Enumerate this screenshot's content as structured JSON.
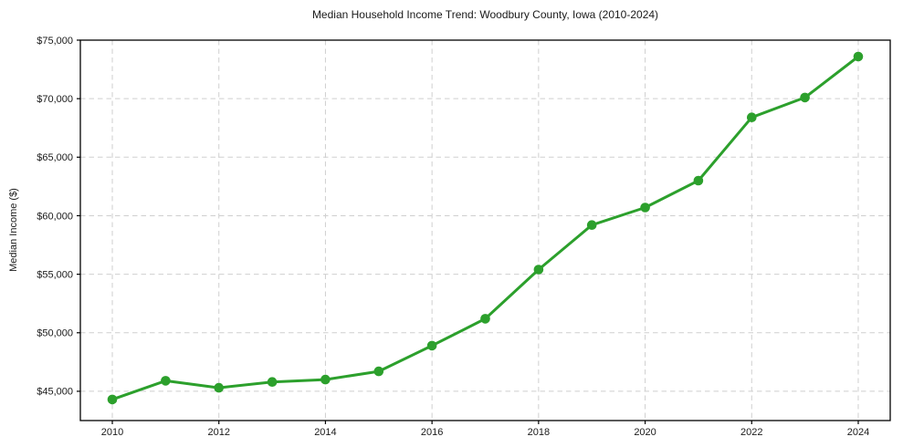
{
  "page": {
    "background": "#ffffff"
  },
  "chart_data": {
    "type": "line",
    "title": "Median Household Income Trend: Woodbury County, Iowa (2010-2024)",
    "xlabel": "",
    "ylabel": "Median Income ($)",
    "series": [
      {
        "name": "Median Household Income",
        "x": [
          2010,
          2011,
          2012,
          2013,
          2014,
          2015,
          2016,
          2017,
          2018,
          2019,
          2020,
          2021,
          2022,
          2023,
          2024
        ],
        "values": [
          44300,
          45900,
          45300,
          45800,
          46000,
          46700,
          48900,
          51200,
          55400,
          59200,
          60700,
          63000,
          68400,
          70100,
          73600
        ]
      }
    ],
    "xlim": [
      2009.4,
      2024.6
    ],
    "ylim": [
      42500,
      75000
    ],
    "xticks": [
      2010,
      2012,
      2014,
      2016,
      2018,
      2020,
      2022,
      2024
    ],
    "xtick_labels": [
      "2010",
      "2012",
      "2014",
      "2016",
      "2018",
      "2020",
      "2022",
      "2024"
    ],
    "yticks": [
      45000,
      50000,
      55000,
      60000,
      65000,
      70000,
      75000
    ],
    "ytick_labels": [
      "$45,000",
      "$50,000",
      "$55,000",
      "$60,000",
      "$65,000",
      "$70,000",
      "$75,000"
    ],
    "grid": true,
    "legend": false,
    "marker": "circle",
    "colors": {
      "line": "#2ca02c",
      "marker": "#2ca02c",
      "grid": "#cfcfcf",
      "axis": "#000000",
      "text": "#1a1a1a",
      "background": "#ffffff"
    }
  }
}
